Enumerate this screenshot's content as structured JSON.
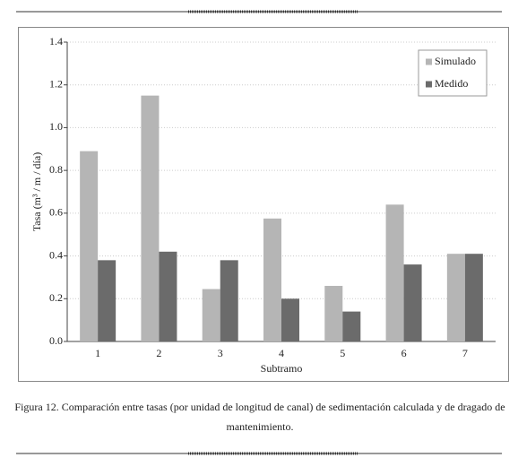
{
  "chart_data": {
    "type": "bar",
    "caption": "Figura 12. Comparación entre tasas (por unidad de longitud de canal) de sedimentación calculada y de dragado de  mantenimiento.",
    "xlabel": "Subtramo",
    "ylabel": "Tasa (m³ / m / día)",
    "categories": [
      "1",
      "2",
      "3",
      "4",
      "5",
      "6",
      "7"
    ],
    "series": [
      {
        "name": "Simulado",
        "color": "#b5b5b5",
        "values": [
          0.89,
          1.15,
          0.245,
          0.575,
          0.26,
          0.64,
          0.41
        ]
      },
      {
        "name": "Medido",
        "color": "#6b6b6b",
        "values": [
          0.38,
          0.42,
          0.38,
          0.2,
          0.14,
          0.36,
          0.41
        ]
      }
    ],
    "ylim": [
      0,
      1.4
    ],
    "yticks": [
      {
        "value": 0,
        "label": "0.0"
      },
      0.2,
      0.4,
      0.6,
      0.8,
      {
        "value": 1,
        "label": "1.0"
      },
      1.2,
      1.4
    ],
    "grid": true,
    "legend": "upper right"
  }
}
